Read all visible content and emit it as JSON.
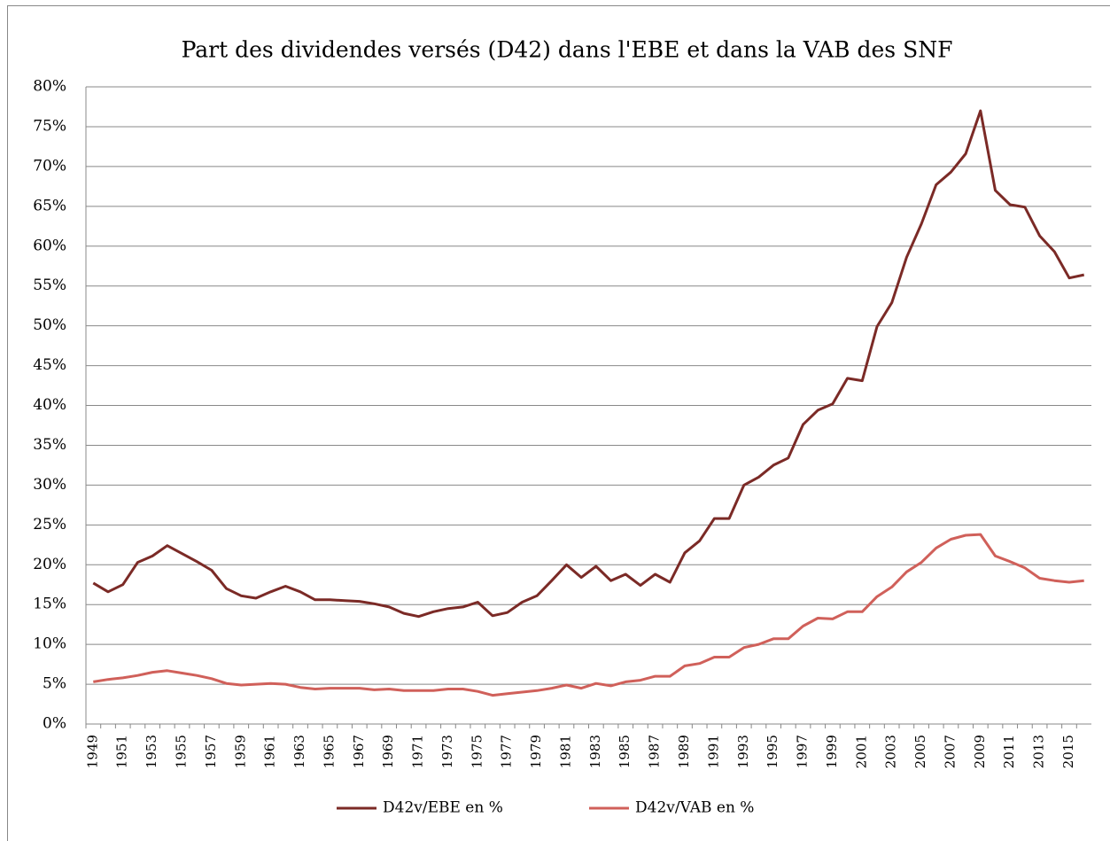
{
  "chart_data": {
    "type": "line",
    "title": "Part des dividendes versés (D42) dans l'EBE et dans la VAB des SNF",
    "categories": [
      "1949",
      null,
      "1951",
      null,
      "1953",
      null,
      "1955",
      null,
      "1957",
      null,
      "1959",
      null,
      "1961",
      null,
      "1963",
      null,
      "1965",
      null,
      "1967",
      null,
      "1969",
      null,
      "1971",
      null,
      "1973",
      null,
      "1975",
      null,
      "1977",
      null,
      "1979",
      null,
      "1981",
      null,
      "1983",
      null,
      "1985",
      null,
      "1987",
      null,
      "1989",
      null,
      "1991",
      null,
      "1993",
      null,
      "1995",
      null,
      "1997",
      null,
      "1999",
      null,
      "2001",
      null,
      "2003",
      null,
      "2005",
      null,
      "2007",
      null,
      "2009",
      null,
      "2011",
      null,
      "2013",
      null,
      "2015",
      null
    ],
    "series": [
      {
        "name": "D42v/EBE en %",
        "color": "#7b2a26",
        "values": [
          17.7,
          16.6,
          17.5,
          20.3,
          21.1,
          22.4,
          21.4,
          20.4,
          19.3,
          17.0,
          16.1,
          15.8,
          16.6,
          17.3,
          16.6,
          15.6,
          15.6,
          15.5,
          15.4,
          15.1,
          14.7,
          13.9,
          13.5,
          14.1,
          14.5,
          14.7,
          15.3,
          13.6,
          14.0,
          15.3,
          16.1,
          18.0,
          20.0,
          18.4,
          19.8,
          18.0,
          18.8,
          17.4,
          18.8,
          17.8,
          21.5,
          23.0,
          25.8,
          25.8,
          30.0,
          31.0,
          32.5,
          33.4,
          37.6,
          39.4,
          40.2,
          43.4,
          43.1,
          49.9,
          52.9,
          58.6,
          62.8,
          67.7,
          69.3,
          71.6,
          77.0,
          67.0,
          65.2,
          64.9,
          61.3,
          59.3,
          56.0,
          56.4
        ]
      },
      {
        "name": "D42v/VAB en %",
        "color": "#d0605a",
        "values": [
          5.3,
          5.6,
          5.8,
          6.1,
          6.5,
          6.7,
          6.4,
          6.1,
          5.7,
          5.1,
          4.9,
          5.0,
          5.1,
          5.0,
          4.6,
          4.4,
          4.5,
          4.5,
          4.5,
          4.3,
          4.4,
          4.2,
          4.2,
          4.2,
          4.4,
          4.4,
          4.1,
          3.6,
          3.8,
          4.0,
          4.2,
          4.5,
          4.9,
          4.5,
          5.1,
          4.8,
          5.3,
          5.5,
          6.0,
          6.0,
          7.3,
          7.6,
          8.4,
          8.4,
          9.6,
          10.0,
          10.7,
          10.7,
          12.3,
          13.3,
          13.2,
          14.1,
          14.1,
          16.0,
          17.2,
          19.1,
          20.3,
          22.1,
          23.2,
          23.7,
          23.8,
          21.1,
          20.4,
          19.6,
          18.3,
          18.0,
          17.8,
          18.0
        ]
      }
    ],
    "ylim": [
      0,
      80
    ],
    "yticks": [
      {
        "value": 0,
        "label": "0%"
      },
      {
        "value": 5,
        "label": "5%"
      },
      {
        "value": 10,
        "label": "10%"
      },
      {
        "value": 15,
        "label": "15%"
      },
      {
        "value": 20,
        "label": "20%"
      },
      {
        "value": 25,
        "label": "25%"
      },
      {
        "value": 30,
        "label": "30%"
      },
      {
        "value": 35,
        "label": "35%"
      },
      {
        "value": 40,
        "label": "40%"
      },
      {
        "value": 45,
        "label": "45%"
      },
      {
        "value": 50,
        "label": "50%"
      },
      {
        "value": 55,
        "label": "55%"
      },
      {
        "value": 60,
        "label": "60%"
      },
      {
        "value": 65,
        "label": "65%"
      },
      {
        "value": 70,
        "label": "70%"
      },
      {
        "value": 75,
        "label": "75%"
      },
      {
        "value": 80,
        "label": "80%"
      }
    ],
    "grid": true,
    "legend": "bottom"
  }
}
